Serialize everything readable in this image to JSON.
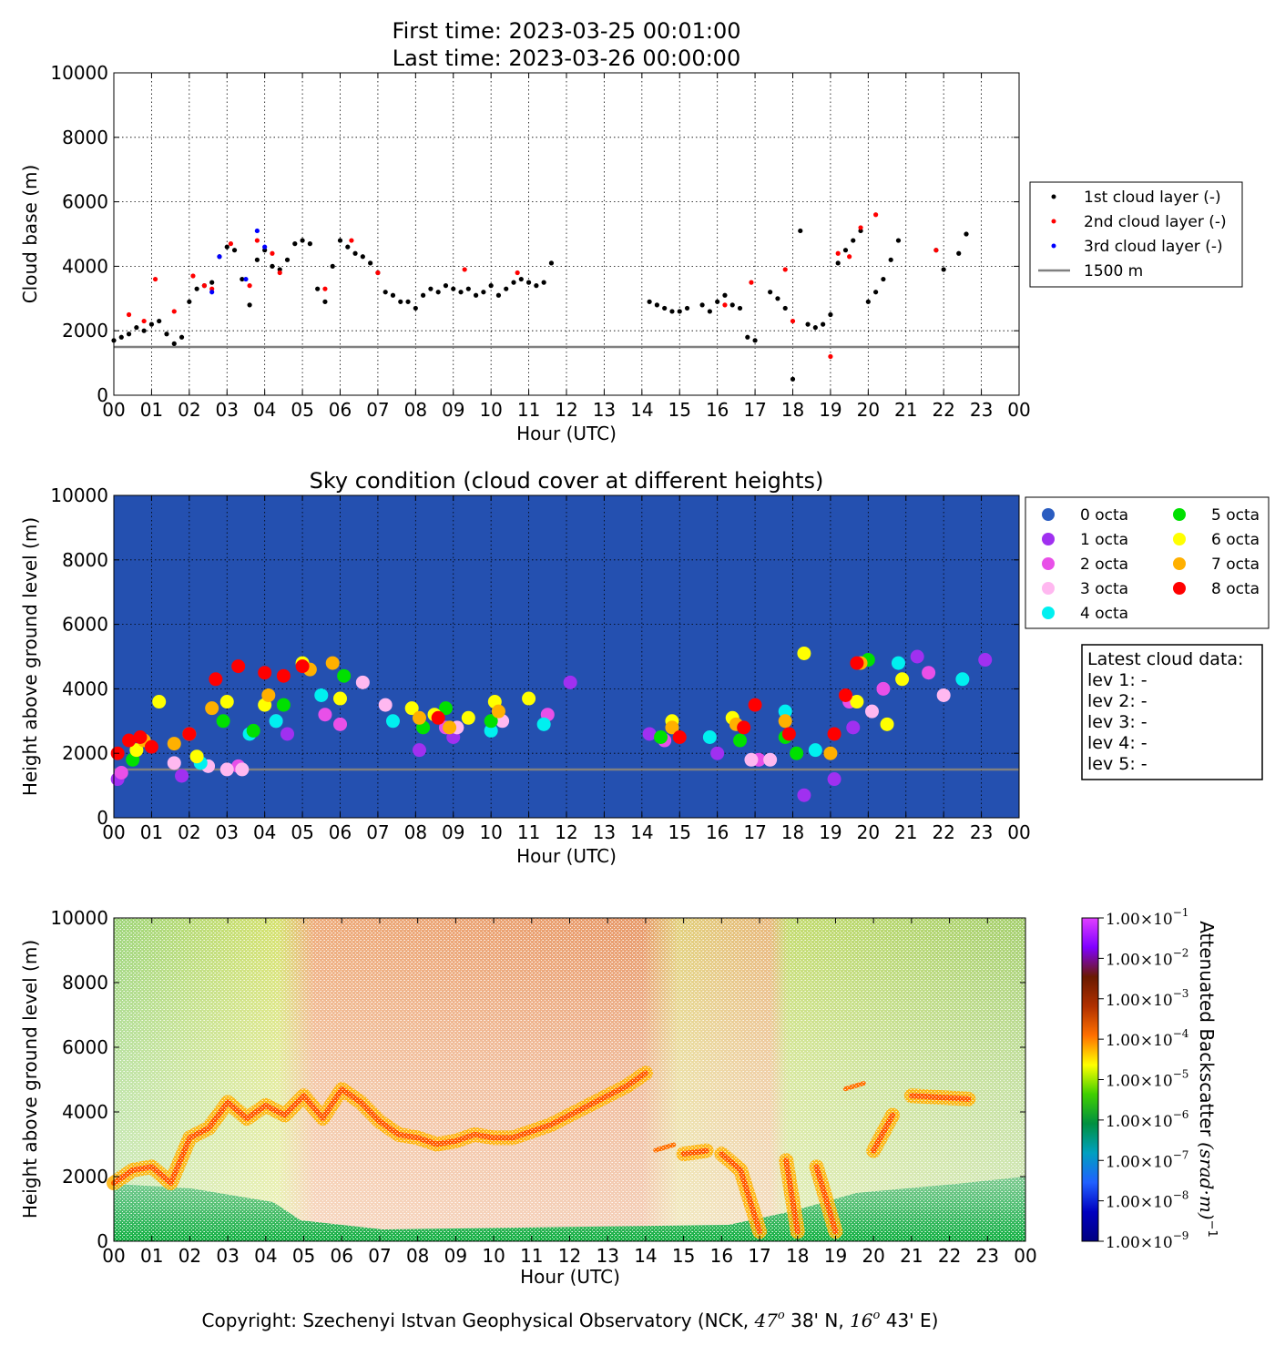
{
  "header": {
    "first_time": "First time: 2023-03-25 00:01:00",
    "last_time": "Last time: 2023-03-26 00:00:00"
  },
  "hour_ticks": [
    "00",
    "01",
    "02",
    "03",
    "04",
    "05",
    "06",
    "07",
    "08",
    "09",
    "10",
    "11",
    "12",
    "13",
    "14",
    "15",
    "16",
    "17",
    "18",
    "19",
    "20",
    "21",
    "22",
    "23",
    "00"
  ],
  "y_ticks": [
    "0",
    "2000",
    "4000",
    "6000",
    "8000",
    "10000"
  ],
  "colors": {
    "sky_background": "#2450b0",
    "reference_line": "#808080",
    "layer1": "#000000",
    "layer2": "#ff0000",
    "layer3": "#0000ff",
    "octa_0": "#2a5cc0",
    "octa_1": "#a030f0",
    "octa_2": "#e850e8",
    "octa_3": "#ffb8f0",
    "octa_4": "#00f0f0",
    "octa_5": "#00e000",
    "octa_6": "#ffff00",
    "octa_7": "#ffb000",
    "octa_8": "#ff0000"
  },
  "copyright": {
    "prefix": "Copyright: Szechenyi Istvan Geophysical Observatory (NCK, ",
    "lat_deg": "47",
    "lat_rest": " 38' N, ",
    "lon_deg": "16",
    "lon_rest": " 43' E)",
    "degree_symbol": "o"
  },
  "latest_box": {
    "title": "Latest cloud data:",
    "lines": [
      "lev 1: -",
      "lev 2: -",
      "lev 3: -",
      "lev 4: -",
      "lev 5: -"
    ]
  },
  "colorbar": {
    "label_main": "Attenuated Backscatter ",
    "label_units": "(srad·m)",
    "label_exp": "−1",
    "ticks": [
      {
        "mant": "1.00",
        "times": "×10",
        "exp": "−1"
      },
      {
        "mant": "1.00",
        "times": "×10",
        "exp": "−2"
      },
      {
        "mant": "1.00",
        "times": "×10",
        "exp": "−3"
      },
      {
        "mant": "1.00",
        "times": "×10",
        "exp": "−4"
      },
      {
        "mant": "1.00",
        "times": "×10",
        "exp": "−5"
      },
      {
        "mant": "1.00",
        "times": "×10",
        "exp": "−6"
      },
      {
        "mant": "1.00",
        "times": "×10",
        "exp": "−7"
      },
      {
        "mant": "1.00",
        "times": "×10",
        "exp": "−8"
      },
      {
        "mant": "1.00",
        "times": "×10",
        "exp": "−9"
      }
    ],
    "colors": [
      "#e040ff",
      "#8000ff",
      "#6a1a00",
      "#b03000",
      "#ff7000",
      "#ffff00",
      "#40d000",
      "#009040",
      "#00a0c0",
      "#2060ff",
      "#0000c0",
      "#000080"
    ]
  },
  "chart_data": [
    {
      "type": "scatter",
      "title": "",
      "xlabel": "Hour (UTC)",
      "ylabel": "Cloud base (m)",
      "xlim": [
        0,
        24
      ],
      "ylim": [
        0,
        10000
      ],
      "grid": true,
      "legend_position": "right",
      "legend": [
        "1st cloud layer (-)",
        "2nd cloud layer (-)",
        "3rd cloud layer (-)",
        "1500 m"
      ],
      "reference_line": 1500,
      "series": [
        {
          "name": "1st cloud layer (-)",
          "x": [
            0.0,
            0.2,
            0.4,
            0.6,
            0.8,
            1.0,
            1.2,
            1.4,
            1.6,
            1.8,
            2.0,
            2.2,
            2.4,
            2.6,
            2.8,
            3.0,
            3.2,
            3.4,
            3.6,
            3.8,
            4.0,
            4.2,
            4.4,
            4.6,
            4.8,
            5.0,
            5.2,
            5.4,
            5.6,
            5.8,
            6.0,
            6.2,
            6.4,
            6.6,
            6.8,
            7.0,
            7.2,
            7.4,
            7.6,
            7.8,
            8.0,
            8.2,
            8.4,
            8.6,
            8.8,
            9.0,
            9.2,
            9.4,
            9.6,
            9.8,
            10.0,
            10.2,
            10.4,
            10.6,
            10.8,
            11.0,
            11.2,
            11.4,
            11.6,
            14.2,
            14.4,
            14.6,
            14.8,
            15.0,
            15.2,
            15.6,
            15.8,
            16.0,
            16.2,
            16.4,
            16.6,
            16.8,
            17.0,
            17.4,
            17.6,
            17.8,
            18.0,
            18.2,
            18.4,
            18.6,
            18.8,
            19.0,
            19.2,
            19.4,
            19.6,
            19.8,
            20.0,
            20.2,
            20.4,
            20.6,
            20.8,
            21.8,
            22.0,
            22.4,
            22.6
          ],
          "y": [
            1700,
            1800,
            1900,
            2100,
            2000,
            2200,
            2300,
            1900,
            1600,
            1800,
            2900,
            3300,
            3400,
            3500,
            4300,
            4600,
            4500,
            3600,
            2800,
            4200,
            4500,
            4000,
            3900,
            4200,
            4700,
            4800,
            4700,
            3300,
            2900,
            4000,
            4800,
            4600,
            4400,
            4300,
            4100,
            3800,
            3200,
            3100,
            2900,
            2900,
            2700,
            3100,
            3300,
            3200,
            3400,
            3300,
            3200,
            3300,
            3100,
            3200,
            3400,
            3100,
            3300,
            3500,
            3600,
            3500,
            3400,
            3500,
            4100,
            2900,
            2800,
            2700,
            2600,
            2600,
            2700,
            2800,
            2600,
            2900,
            3100,
            2800,
            2700,
            1800,
            1700,
            3200,
            3000,
            2700,
            500,
            5100,
            2200,
            2100,
            2200,
            2500,
            4100,
            4500,
            4800,
            5100,
            2900,
            3200,
            3600,
            4200,
            4800,
            4500,
            3900,
            4400,
            5000
          ]
        },
        {
          "name": "2nd cloud layer (-)",
          "x": [
            0.4,
            0.8,
            1.1,
            1.6,
            2.1,
            2.4,
            2.6,
            3.1,
            3.6,
            3.8,
            4.2,
            4.4,
            5.6,
            6.3,
            7.0,
            9.3,
            10.7,
            16.2,
            16.9,
            17.8,
            18.0,
            19.0,
            19.2,
            19.5,
            19.8,
            20.2,
            21.8
          ],
          "y": [
            2500,
            2300,
            3600,
            2600,
            3700,
            3400,
            3300,
            4700,
            3400,
            4800,
            4400,
            3800,
            3300,
            4800,
            3800,
            3900,
            3800,
            2800,
            3500,
            3900,
            2300,
            1200,
            4400,
            4300,
            5200,
            5600,
            4500
          ]
        },
        {
          "name": "3rd cloud layer (-)",
          "x": [
            2.6,
            2.8,
            3.5,
            3.8,
            4.0
          ],
          "y": [
            3200,
            4300,
            3600,
            5100,
            4600
          ]
        }
      ]
    },
    {
      "type": "scatter",
      "title": "Sky condition (cloud cover at different heights)",
      "xlabel": "Hour (UTC)",
      "ylabel": "Height above ground level (m)",
      "xlim": [
        0,
        24
      ],
      "ylim": [
        0,
        10000
      ],
      "grid": true,
      "legend_position": "right",
      "legend": [
        "0 octa",
        "1 octa",
        "2 octa",
        "3 octa",
        "4 octa",
        "5 octa",
        "6 octa",
        "7 octa",
        "8 octa"
      ],
      "reference_line": 1500,
      "series": [
        {
          "name": "0 octa",
          "x": [],
          "y": []
        },
        {
          "name": "1 octa",
          "x": [
            0.1,
            1.8,
            4.6,
            8.1,
            9.0,
            12.1,
            14.2,
            16.0,
            18.3,
            19.1,
            19.6,
            21.3,
            23.1
          ],
          "y": [
            1200,
            1300,
            2600,
            2100,
            2500,
            4200,
            2600,
            2000,
            700,
            1200,
            2800,
            5000,
            4900
          ]
        },
        {
          "name": "2 octa",
          "x": [
            0.2,
            3.3,
            4.3,
            5.6,
            6.0,
            8.8,
            11.5,
            14.6,
            17.1,
            19.5,
            20.4,
            21.6
          ],
          "y": [
            1400,
            1600,
            3000,
            3200,
            2900,
            2800,
            3200,
            2400,
            1800,
            3600,
            4000,
            4500
          ]
        },
        {
          "name": "3 octa",
          "x": [
            1.6,
            2.5,
            3.0,
            3.4,
            6.6,
            7.2,
            9.1,
            10.3,
            16.9,
            17.4,
            20.1,
            22.0
          ],
          "y": [
            1700,
            1600,
            1500,
            1500,
            4200,
            3500,
            2800,
            3000,
            1800,
            1800,
            3300,
            3800
          ]
        },
        {
          "name": "4 octa",
          "x": [
            2.3,
            3.6,
            4.3,
            5.5,
            7.4,
            10.0,
            11.4,
            15.8,
            17.8,
            18.6,
            20.8,
            22.5
          ],
          "y": [
            1700,
            2600,
            3000,
            3800,
            3000,
            2700,
            2900,
            2500,
            3300,
            2100,
            4800,
            4300
          ]
        },
        {
          "name": "5 octa",
          "x": [
            0.5,
            2.9,
            3.7,
            4.5,
            6.1,
            8.2,
            8.8,
            10.0,
            14.5,
            16.6,
            17.8,
            18.1,
            20.0
          ],
          "y": [
            1800,
            3000,
            2700,
            3500,
            4400,
            2800,
            3400,
            3000,
            2500,
            2400,
            2500,
            2000,
            4900
          ]
        },
        {
          "name": "6 octa",
          "x": [
            0.6,
            1.2,
            2.2,
            3.0,
            4.0,
            5.0,
            6.0,
            7.9,
            8.5,
            9.4,
            10.1,
            11.0,
            14.8,
            16.4,
            18.3,
            19.7,
            20.5,
            20.9
          ],
          "y": [
            2100,
            3600,
            1900,
            3600,
            3500,
            4800,
            3700,
            3400,
            3200,
            3100,
            3600,
            3700,
            3000,
            3100,
            5100,
            3600,
            2900,
            4300
          ]
        },
        {
          "name": "7 octa",
          "x": [
            0.8,
            1.6,
            2.0,
            2.6,
            4.1,
            5.2,
            5.8,
            8.1,
            8.9,
            10.2,
            14.8,
            16.5,
            17.8,
            19.0,
            19.8
          ],
          "y": [
            2400,
            2300,
            2600,
            3400,
            3800,
            4600,
            4800,
            3100,
            2800,
            3300,
            2800,
            2900,
            3000,
            2000,
            4800
          ]
        },
        {
          "name": "8 octa",
          "x": [
            0.1,
            0.4,
            0.7,
            1.0,
            2.0,
            2.7,
            3.3,
            4.0,
            4.5,
            5.0,
            8.6,
            15.0,
            16.7,
            17.0,
            17.9,
            19.1,
            19.4,
            19.7
          ],
          "y": [
            2000,
            2400,
            2500,
            2200,
            2600,
            4300,
            4700,
            4500,
            4400,
            4700,
            3100,
            2500,
            2800,
            3500,
            2600,
            2600,
            3800,
            4800
          ]
        }
      ]
    },
    {
      "type": "heatmap",
      "title": "",
      "xlabel": "Hour (UTC)",
      "ylabel": "Height above ground level (m)",
      "xlim": [
        0,
        24
      ],
      "ylim": [
        0,
        10000
      ],
      "colorbar_label": "Attenuated Backscatter (srad·m)⁻¹",
      "color_scale": "log",
      "value_range": [
        1e-09,
        0.1
      ],
      "cloud_trace": {
        "x": [
          0.0,
          0.5,
          1.0,
          1.5,
          2.0,
          2.5,
          3.0,
          3.5,
          4.0,
          4.5,
          5.0,
          5.5,
          6.0,
          6.5,
          7.0,
          7.5,
          8.0,
          8.5,
          9.0,
          9.5,
          10.0,
          10.5,
          11.0,
          11.5,
          12.0,
          12.5,
          13.0,
          13.5,
          14.0,
          14.5,
          15.0,
          15.6,
          16.0,
          16.5,
          17.0,
          17.7,
          18.0,
          18.5,
          19.0,
          19.5,
          20.0,
          20.5,
          21.0,
          22.5
        ],
        "y": [
          1800,
          2200,
          2300,
          1800,
          3200,
          3500,
          4300,
          3800,
          4200,
          3900,
          4500,
          3800,
          4700,
          4300,
          3700,
          3300,
          3200,
          3000,
          3100,
          3300,
          3200,
          3200,
          3400,
          3600,
          3900,
          4200,
          4500,
          4800,
          5200,
          2900,
          2700,
          2800,
          2700,
          2200,
          300,
          2500,
          300,
          2300,
          300,
          4800,
          2800,
          3900,
          4500,
          4400
        ]
      }
    }
  ]
}
